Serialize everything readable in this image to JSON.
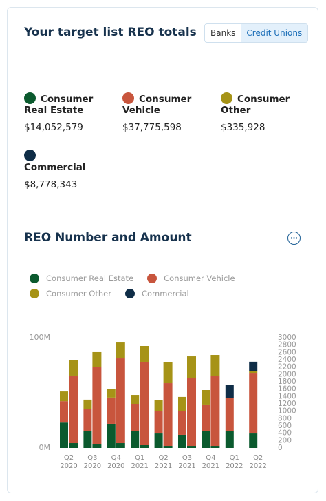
{
  "header": {
    "title": "Your target list REO totals",
    "toggle": [
      {
        "label": "Banks",
        "selected": false
      },
      {
        "label": "Credit Unions",
        "selected": true
      }
    ]
  },
  "totals": [
    {
      "name": "Consumer Real Estate",
      "amount": "$14,052,579",
      "color": "#0b5a2e"
    },
    {
      "name": "Consumer Vehicle",
      "amount": "$37,775,598",
      "color": "#c8553d"
    },
    {
      "name": "Consumer Other",
      "amount": "$335,928",
      "color": "#a69317"
    },
    {
      "name": "Commercial",
      "amount": "$8,778,343",
      "color": "#0f2d47"
    }
  ],
  "chart_data": {
    "type": "bar",
    "stacked": true,
    "title": "REO Number and Amount",
    "categories": [
      "Q2 2020",
      "Q3 2020",
      "Q4 2020",
      "Q1 2021",
      "Q2 2021",
      "Q3 2021",
      "Q4 2021",
      "Q1 2022",
      "Q2 2022"
    ],
    "series": [
      {
        "name": "Consumer Real Estate",
        "color": "#0b5a2e",
        "values": [
          23,
          15.6,
          21.9,
          15,
          13.1,
          11.9,
          15,
          15,
          13.1
        ],
        "y2_values": [
          131,
          94,
          131,
          75,
          56,
          56,
          56,
          null,
          null
        ]
      },
      {
        "name": "Consumer Vehicle",
        "color": "#c8553d",
        "values": [
          19.4,
          19.4,
          23.8,
          25,
          20.6,
          21.3,
          24.4,
          30,
          55
        ],
        "y2_values": [
          1838,
          2100,
          2306,
          2269,
          1706,
          1856,
          1894,
          null,
          null
        ]
      },
      {
        "name": "Consumer Other",
        "color": "#a69317",
        "values": [
          8.8,
          8.8,
          7.5,
          8.1,
          10,
          13.1,
          13.1,
          0.6,
          1.3
        ],
        "y2_values": [
          431,
          413,
          431,
          431,
          581,
          581,
          581,
          null,
          null
        ]
      },
      {
        "name": "Commercial",
        "color": "#0f2d47",
        "values": [
          null,
          null,
          null,
          null,
          null,
          null,
          null,
          11.9,
          8.8
        ],
        "y2_values": [
          null,
          null,
          null,
          null,
          null,
          null,
          null,
          null,
          null
        ]
      }
    ],
    "ylim": [
      0,
      100
    ],
    "yticks": [
      {
        "value": 0,
        "label": "0M"
      },
      {
        "value": 100,
        "label": "100M"
      }
    ],
    "y2lim": [
      0,
      3000
    ],
    "y2ticks": [
      0,
      200,
      400,
      600,
      800,
      1000,
      1200,
      1400,
      1600,
      1800,
      2000,
      2200,
      2400,
      2600,
      2800,
      3000
    ]
  }
}
